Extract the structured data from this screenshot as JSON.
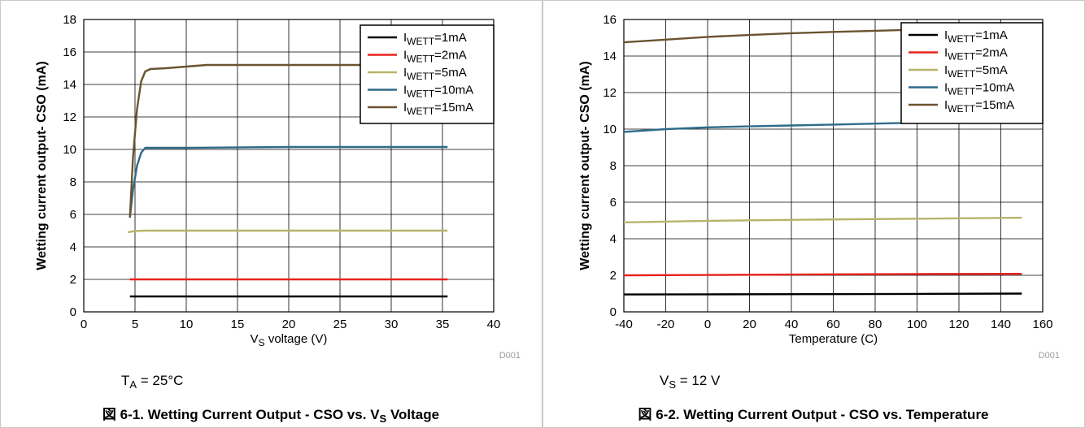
{
  "chart_data": [
    {
      "type": "line",
      "xlabel_main": "V",
      "xlabel_sub": "S",
      "xlabel_rest": " voltage (V)",
      "ylabel": "Wetting current output- CSO (mA)",
      "xlim": [
        0,
        40
      ],
      "ylim": [
        0,
        18
      ],
      "xticks": [
        "0",
        "5",
        "10",
        "15",
        "20",
        "25",
        "30",
        "35",
        "40"
      ],
      "yticks": [
        "0",
        "2",
        "4",
        "6",
        "8",
        "10",
        "12",
        "14",
        "16",
        "18"
      ],
      "grid": true,
      "legend_position": "top-right",
      "code": "D001",
      "condition_main": "T",
      "condition_sub": "A",
      "condition_rest": " = 25°C",
      "caption_main": "図 6-1. Wetting Current Output - CSO vs. V",
      "caption_sub": "S",
      "caption_rest": " Voltage",
      "series": [
        {
          "name_main": "I",
          "name_sub": "WETT",
          "name_rest": "=1mA",
          "color": "#000000",
          "x": [
            4.5,
            10,
            20,
            30,
            35.5
          ],
          "y": [
            0.95,
            0.95,
            0.95,
            0.95,
            0.95
          ]
        },
        {
          "name_main": "I",
          "name_sub": "WETT",
          "name_rest": "=2mA",
          "color": "#e8231f",
          "x": [
            4.5,
            10,
            20,
            30,
            35.5
          ],
          "y": [
            2.0,
            2.0,
            2.0,
            2.0,
            2.0
          ]
        },
        {
          "name_main": "I",
          "name_sub": "WETT",
          "name_rest": "=5mA",
          "color": "#b8b36a",
          "x": [
            4.3,
            5,
            6,
            10,
            20,
            30,
            35.5
          ],
          "y": [
            4.9,
            4.98,
            5.0,
            5.0,
            5.0,
            5.0,
            5.0
          ]
        },
        {
          "name_main": "I",
          "name_sub": "WETT",
          "name_rest": "=10mA",
          "color": "#2e6b8a",
          "x": [
            4.5,
            4.8,
            5.2,
            5.6,
            6.0,
            7,
            10,
            20,
            30,
            35.5
          ],
          "y": [
            5.8,
            7.5,
            9.0,
            9.8,
            10.1,
            10.1,
            10.1,
            10.15,
            10.15,
            10.15
          ]
        },
        {
          "name_main": "I",
          "name_sub": "WETT",
          "name_rest": "=15mA",
          "color": "#6b5330",
          "x": [
            4.5,
            4.8,
            5.2,
            5.6,
            6.0,
            6.5,
            8,
            12,
            20,
            30,
            35.5
          ],
          "y": [
            5.8,
            9.5,
            12.5,
            14.2,
            14.8,
            14.95,
            15.0,
            15.2,
            15.2,
            15.2,
            15.2
          ]
        }
      ]
    },
    {
      "type": "line",
      "xlabel": "Temperature (C)",
      "ylabel": "Wetting current output- CSO (mA)",
      "xlim": [
        -40,
        160
      ],
      "ylim": [
        0,
        16
      ],
      "xticks": [
        "-40",
        "-20",
        "0",
        "20",
        "40",
        "60",
        "80",
        "100",
        "120",
        "140",
        "160"
      ],
      "yticks": [
        "0",
        "2",
        "4",
        "6",
        "8",
        "10",
        "12",
        "14",
        "16"
      ],
      "grid": true,
      "legend_position": "top-right",
      "code": "D001",
      "condition_main": "V",
      "condition_sub": "S",
      "condition_rest": " = 12 V",
      "caption": "図 6-2. Wetting Current Output - CSO vs. Temperature",
      "series": [
        {
          "name_main": "I",
          "name_sub": "WETT",
          "name_rest": "=1mA",
          "color": "#000000",
          "x": [
            -40,
            0,
            50,
            100,
            150
          ],
          "y": [
            0.95,
            0.96,
            0.97,
            0.98,
            1.0
          ]
        },
        {
          "name_main": "I",
          "name_sub": "WETT",
          "name_rest": "=2mA",
          "color": "#e8231f",
          "x": [
            -40,
            0,
            50,
            100,
            150
          ],
          "y": [
            2.0,
            2.02,
            2.05,
            2.07,
            2.08
          ]
        },
        {
          "name_main": "I",
          "name_sub": "WETT",
          "name_rest": "=5mA",
          "color": "#b8b36a",
          "x": [
            -40,
            0,
            50,
            100,
            150
          ],
          "y": [
            4.9,
            4.98,
            5.05,
            5.1,
            5.15
          ]
        },
        {
          "name_main": "I",
          "name_sub": "WETT",
          "name_rest": "=10mA",
          "color": "#2e6b8a",
          "x": [
            -40,
            -20,
            0,
            20,
            40,
            60,
            80,
            100
          ],
          "y": [
            9.85,
            10.0,
            10.1,
            10.15,
            10.2,
            10.25,
            10.3,
            10.35
          ]
        },
        {
          "name_main": "I",
          "name_sub": "WETT",
          "name_rest": "=15mA",
          "color": "#6b5330",
          "x": [
            -40,
            -20,
            0,
            20,
            40,
            60,
            80,
            100
          ],
          "y": [
            14.75,
            14.9,
            15.05,
            15.15,
            15.25,
            15.32,
            15.38,
            15.45
          ]
        }
      ]
    }
  ]
}
